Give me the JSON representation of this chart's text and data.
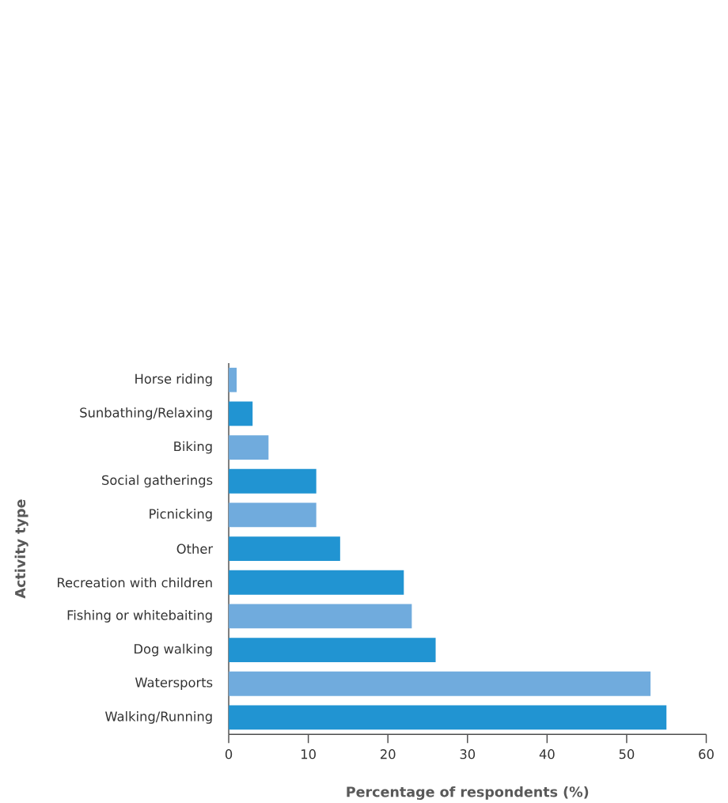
{
  "chart_data": {
    "type": "bar",
    "orientation": "horizontal",
    "xlabel": "Percentage of respondents (%)",
    "ylabel": "Activity type",
    "categories": [
      "Horse riding",
      "Sunbathing/Relaxing",
      "Biking",
      "Social gatherings",
      "Picnicking",
      "Other",
      "Recreation with children",
      "Fishing or whitebaiting",
      "Dog walking",
      "Watersports",
      "Walking/Running"
    ],
    "values": [
      1,
      3,
      5,
      11,
      11,
      14,
      22,
      23,
      26,
      53,
      55
    ],
    "colors": [
      "#70abdd",
      "#2194d2",
      "#70abdd",
      "#2194d2",
      "#70abdd",
      "#2194d2",
      "#2194d2",
      "#70abdd",
      "#2194d2",
      "#70abdd",
      "#2194d2"
    ],
    "xlim": [
      0,
      60
    ],
    "xticks": [
      0,
      10,
      20,
      30,
      40,
      50,
      60
    ]
  }
}
